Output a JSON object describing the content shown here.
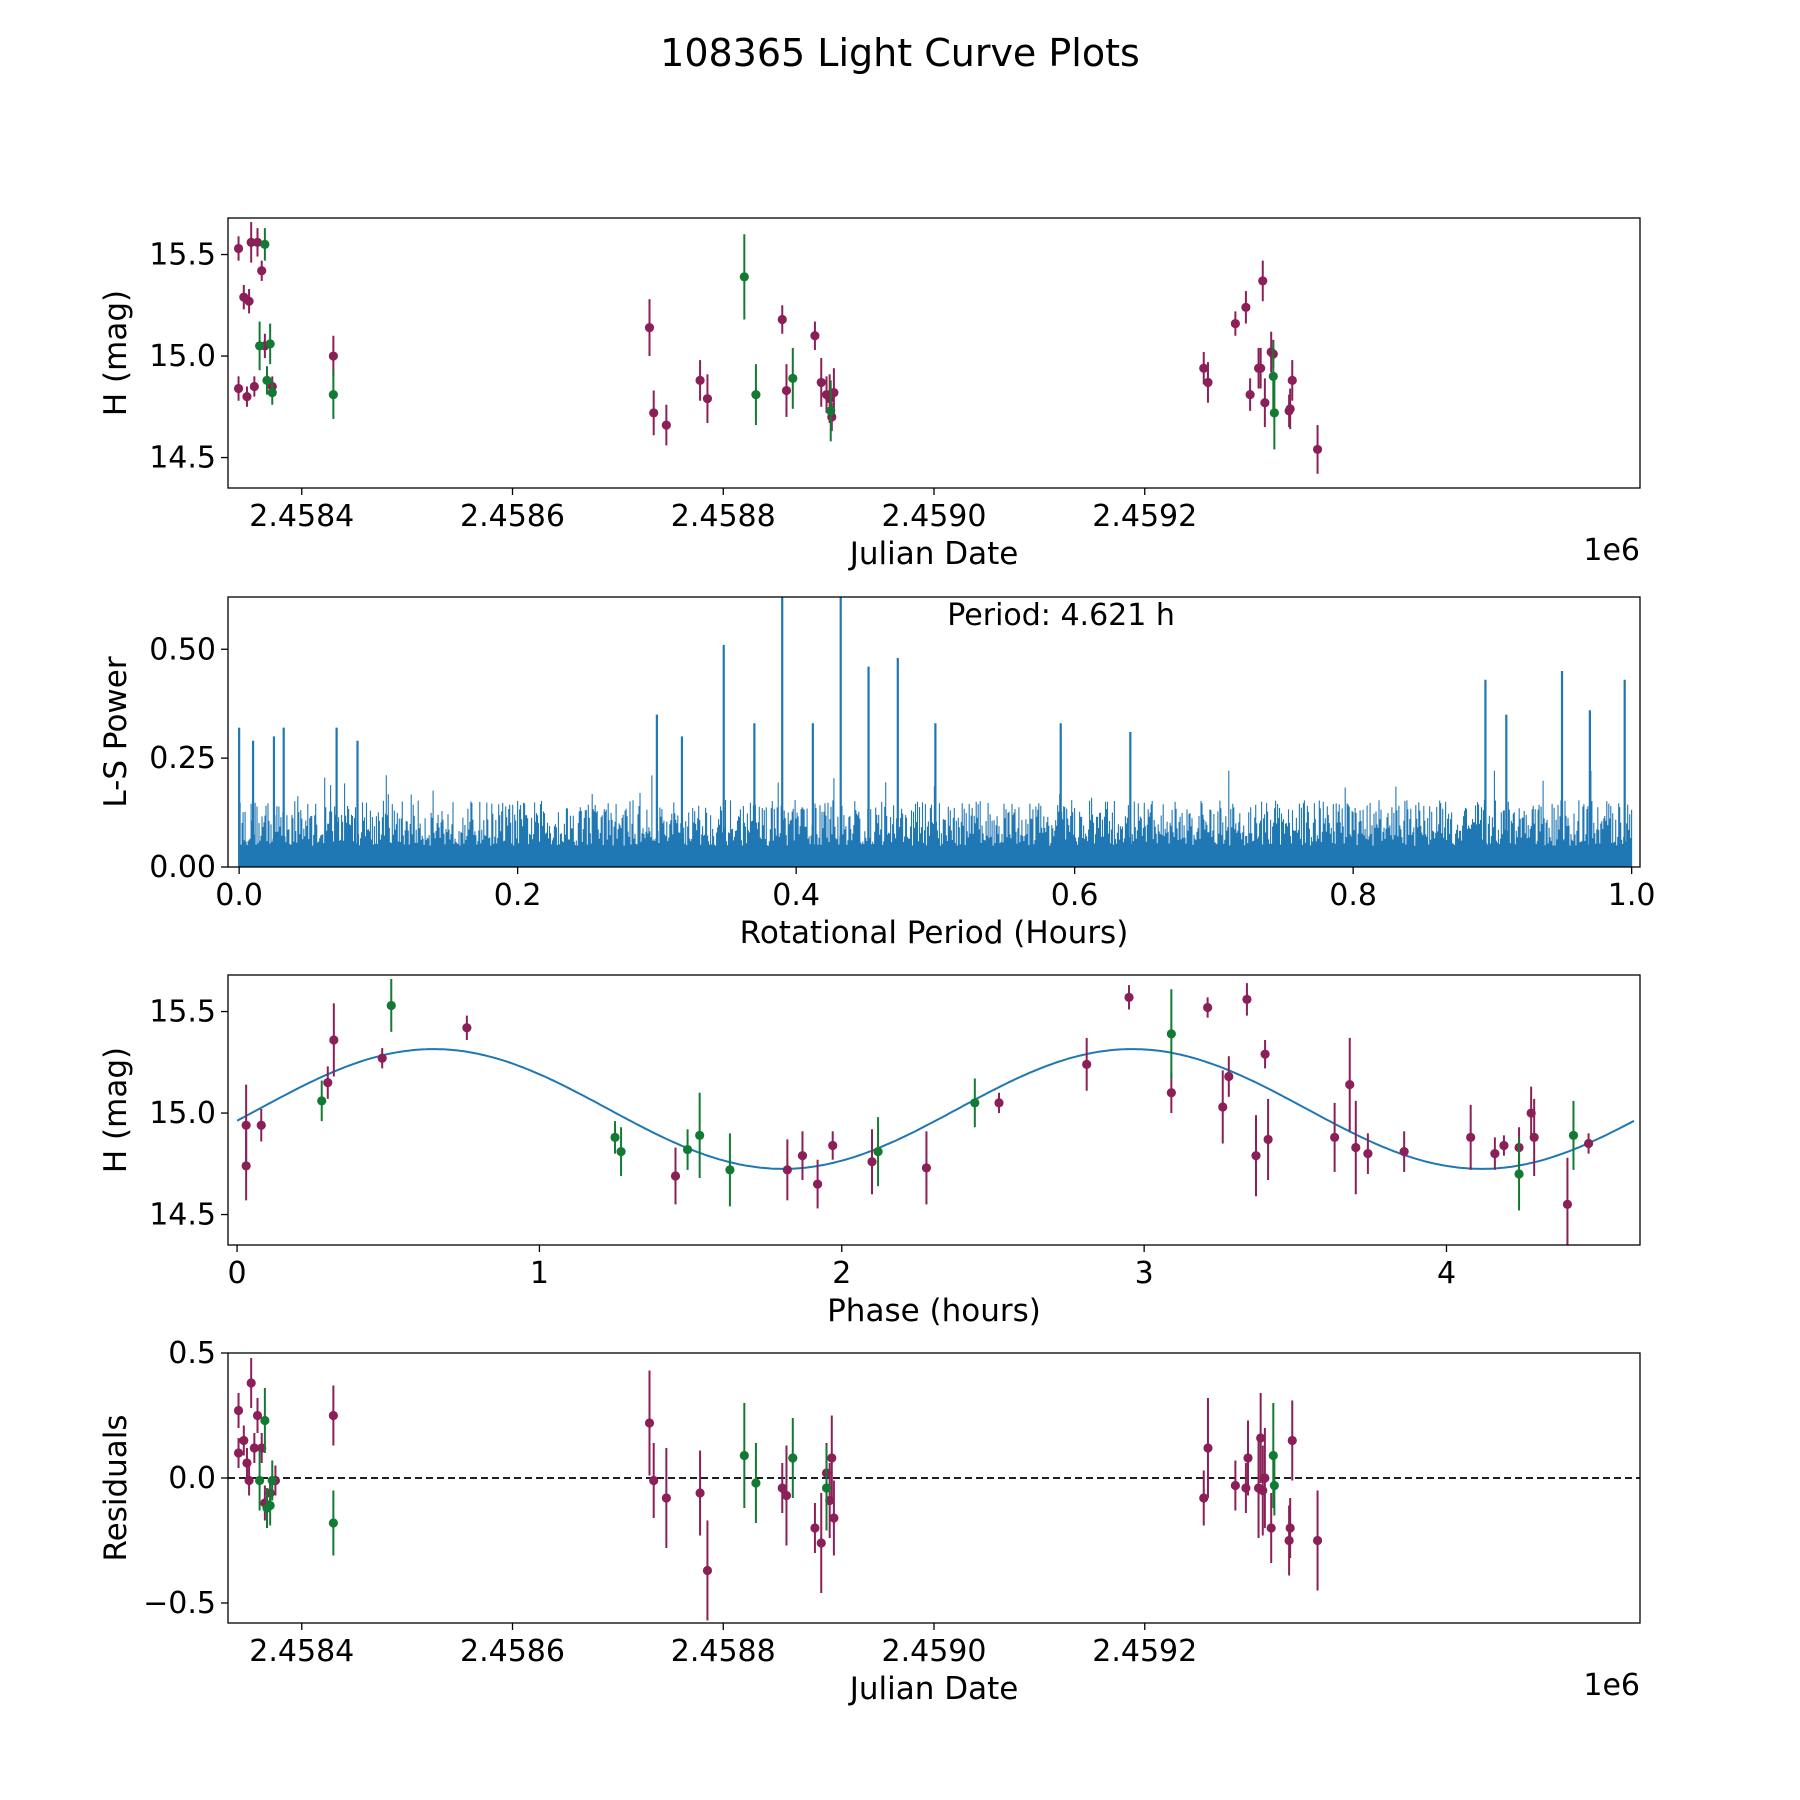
{
  "figure_title": "108365 Light Curve Plots",
  "colors": {
    "ztf_r": "#8b1f57",
    "ztf_g": "#137a33",
    "periodogram": "#1f77b4",
    "fit_curve": "#1f77b4",
    "zero_line": "#000000"
  },
  "chart_data": [
    {
      "type": "scatter",
      "title": "",
      "xlabel": "Julian Date",
      "ylabel": "H (mag)",
      "x_offset_label": "1e6",
      "xlim": [
        2.45833,
        2.45967
      ],
      "ylim": [
        14.35,
        15.68
      ],
      "xticks": [
        2.4584,
        2.4586,
        2.4588,
        2.459,
        2.4592
      ],
      "xtick_labels": [
        "2.4584",
        "2.4586",
        "2.4588",
        "2.4590",
        "2.4592"
      ],
      "yticks": [
        14.5,
        15.0,
        15.5
      ],
      "ytick_labels": [
        "14.5",
        "15.0",
        "15.5"
      ],
      "series": [
        {
          "name": "red",
          "color": "#8b1f57",
          "points": [
            [
              2.45834,
              15.53,
              0.06
            ],
            [
              2.45834,
              14.84,
              0.06
            ],
            [
              2.458345,
              15.29,
              0.06
            ],
            [
              2.458348,
              14.8,
              0.05
            ],
            [
              2.45835,
              15.27,
              0.06
            ],
            [
              2.458352,
              15.56,
              0.1
            ],
            [
              2.458355,
              14.85,
              0.05
            ],
            [
              2.458358,
              15.56,
              0.07
            ],
            [
              2.458362,
              15.42,
              0.05
            ],
            [
              2.458365,
              15.05,
              0.06
            ],
            [
              2.458372,
              14.85,
              0.05
            ],
            [
              2.45843,
              15.0,
              0.1
            ],
            [
              2.45873,
              15.14,
              0.14
            ],
            [
              2.458734,
              14.72,
              0.11
            ],
            [
              2.458746,
              14.66,
              0.1
            ],
            [
              2.458778,
              14.88,
              0.1
            ],
            [
              2.458785,
              14.79,
              0.12
            ],
            [
              2.458856,
              15.18,
              0.07
            ],
            [
              2.45886,
              14.83,
              0.13
            ],
            [
              2.458887,
              15.1,
              0.07
            ],
            [
              2.458893,
              14.87,
              0.12
            ],
            [
              2.458898,
              14.81,
              0.09
            ],
            [
              2.458901,
              14.79,
              0.12
            ],
            [
              2.458903,
              14.7,
              0.07
            ],
            [
              2.458905,
              14.82,
              0.12
            ],
            [
              2.459256,
              14.94,
              0.08
            ],
            [
              2.45926,
              14.87,
              0.1
            ],
            [
              2.459286,
              15.16,
              0.06
            ],
            [
              2.459296,
              15.24,
              0.08
            ],
            [
              2.4593,
              14.81,
              0.08
            ],
            [
              2.459308,
              14.94,
              0.1
            ],
            [
              2.45931,
              14.94,
              0.1
            ],
            [
              2.459312,
              15.37,
              0.1
            ],
            [
              2.459314,
              14.77,
              0.12
            ],
            [
              2.45932,
              15.02,
              0.1
            ],
            [
              2.459322,
              15.01,
              0.07
            ],
            [
              2.459337,
              14.73,
              0.08
            ],
            [
              2.459338,
              14.74,
              0.1
            ],
            [
              2.45934,
              14.88,
              0.1
            ],
            [
              2.459364,
              14.54,
              0.12
            ]
          ]
        },
        {
          "name": "green",
          "color": "#137a33",
          "points": [
            [
              2.458365,
              15.55,
              0.08
            ],
            [
              2.45836,
              15.05,
              0.12
            ],
            [
              2.458367,
              14.88,
              0.07
            ],
            [
              2.45837,
              15.06,
              0.1
            ],
            [
              2.458372,
              14.82,
              0.06
            ],
            [
              2.45843,
              14.81,
              0.12
            ],
            [
              2.45882,
              15.39,
              0.21
            ],
            [
              2.458831,
              14.81,
              0.15
            ],
            [
              2.458866,
              14.89,
              0.15
            ],
            [
              2.458902,
              14.73,
              0.15
            ],
            [
              2.459322,
              14.9,
              0.17
            ],
            [
              2.459323,
              14.72,
              0.18
            ]
          ]
        }
      ]
    },
    {
      "type": "line",
      "title": "",
      "xlabel": "Rotational Period (Hours)",
      "ylabel": "L-S Power",
      "xlim": [
        -0.008,
        1.006
      ],
      "ylim": [
        0.0,
        0.62
      ],
      "xticks": [
        0.0,
        0.2,
        0.4,
        0.6,
        0.8,
        1.0
      ],
      "xtick_labels": [
        "0.0",
        "0.2",
        "0.4",
        "0.6",
        "0.8",
        "1.0"
      ],
      "yticks": [
        0.0,
        0.25,
        0.5
      ],
      "ytick_labels": [
        "0.00",
        "0.25",
        "0.50"
      ],
      "annotation": "Period: 4.621 h",
      "noise_level": 0.14,
      "peaks": [
        [
          0.0,
          0.32
        ],
        [
          0.01,
          0.29
        ],
        [
          0.025,
          0.3
        ],
        [
          0.032,
          0.32
        ],
        [
          0.07,
          0.32
        ],
        [
          0.085,
          0.29
        ],
        [
          0.3,
          0.35
        ],
        [
          0.318,
          0.3
        ],
        [
          0.348,
          0.51
        ],
        [
          0.37,
          0.33
        ],
        [
          0.39,
          0.62
        ],
        [
          0.412,
          0.33
        ],
        [
          0.432,
          0.62
        ],
        [
          0.452,
          0.46
        ],
        [
          0.473,
          0.48
        ],
        [
          0.5,
          0.33
        ],
        [
          0.59,
          0.33
        ],
        [
          0.64,
          0.31
        ],
        [
          0.895,
          0.43
        ],
        [
          0.91,
          0.35
        ],
        [
          0.95,
          0.45
        ],
        [
          0.97,
          0.36
        ],
        [
          0.995,
          0.43
        ]
      ]
    },
    {
      "type": "scatter",
      "title": "",
      "xlabel": "Phase (hours)",
      "ylabel": "H (mag)",
      "xlim": [
        -0.03,
        4.64
      ],
      "ylim": [
        14.35,
        15.68
      ],
      "xticks": [
        0,
        1,
        2,
        3,
        4
      ],
      "xtick_labels": [
        "0",
        "1",
        "2",
        "3",
        "4"
      ],
      "yticks": [
        14.5,
        15.0,
        15.5
      ],
      "ytick_labels": [
        "14.5",
        "15.0",
        "15.5"
      ],
      "fit": {
        "mean": 15.02,
        "amplitude": 0.295,
        "period_h": 4.621,
        "peak_phase_h": 0.65,
        "x_range": [
          0.0,
          4.62
        ]
      },
      "series": [
        {
          "name": "red",
          "color": "#8b1f57",
          "points": [
            [
              0.03,
              14.94,
              0.2
            ],
            [
              0.03,
              14.74,
              0.17
            ],
            [
              0.08,
              14.94,
              0.08
            ],
            [
              0.3,
              15.15,
              0.08
            ],
            [
              0.32,
              15.36,
              0.18
            ],
            [
              0.48,
              15.27,
              0.05
            ],
            [
              0.76,
              15.42,
              0.06
            ],
            [
              1.45,
              14.69,
              0.14
            ],
            [
              1.82,
              14.72,
              0.15
            ],
            [
              1.87,
              14.79,
              0.12
            ],
            [
              1.92,
              14.65,
              0.12
            ],
            [
              1.97,
              14.84,
              0.07
            ],
            [
              2.1,
              14.76,
              0.16
            ],
            [
              2.28,
              14.73,
              0.18
            ],
            [
              2.52,
              15.05,
              0.05
            ],
            [
              2.81,
              15.24,
              0.13
            ],
            [
              2.95,
              15.57,
              0.06
            ],
            [
              3.09,
              15.1,
              0.1
            ],
            [
              3.21,
              15.52,
              0.05
            ],
            [
              3.26,
              15.03,
              0.18
            ],
            [
              3.28,
              15.18,
              0.1
            ],
            [
              3.34,
              15.56,
              0.08
            ],
            [
              3.37,
              14.79,
              0.2
            ],
            [
              3.4,
              15.29,
              0.07
            ],
            [
              3.41,
              14.87,
              0.2
            ],
            [
              3.63,
              14.88,
              0.17
            ],
            [
              3.68,
              15.14,
              0.23
            ],
            [
              3.7,
              14.83,
              0.23
            ],
            [
              3.74,
              14.8,
              0.1
            ],
            [
              3.86,
              14.81,
              0.1
            ],
            [
              4.08,
              14.88,
              0.16
            ],
            [
              4.16,
              14.8,
              0.08
            ],
            [
              4.19,
              14.84,
              0.05
            ],
            [
              4.24,
              14.83,
              0.1
            ],
            [
              4.28,
              15.0,
              0.13
            ],
            [
              4.29,
              14.88,
              0.19
            ],
            [
              4.4,
              14.55,
              0.23
            ],
            [
              4.47,
              14.85,
              0.05
            ]
          ]
        },
        {
          "name": "green",
          "color": "#137a33",
          "points": [
            [
              0.28,
              15.06,
              0.1
            ],
            [
              0.51,
              15.53,
              0.13
            ],
            [
              1.25,
              14.88,
              0.08
            ],
            [
              1.27,
              14.81,
              0.12
            ],
            [
              1.49,
              14.82,
              0.1
            ],
            [
              1.53,
              14.89,
              0.21
            ],
            [
              1.63,
              14.72,
              0.18
            ],
            [
              2.12,
              14.81,
              0.17
            ],
            [
              2.44,
              15.05,
              0.12
            ],
            [
              3.09,
              15.39,
              0.22
            ],
            [
              4.24,
              14.7,
              0.18
            ],
            [
              4.42,
              14.89,
              0.17
            ]
          ]
        }
      ]
    },
    {
      "type": "scatter",
      "title": "",
      "xlabel": "Julian Date",
      "ylabel": "Residuals",
      "x_offset_label": "1e6",
      "xlim": [
        2.45833,
        2.45967
      ],
      "ylim": [
        -0.58,
        0.5
      ],
      "xticks": [
        2.4584,
        2.4586,
        2.4588,
        2.459,
        2.4592
      ],
      "xtick_labels": [
        "2.4584",
        "2.4586",
        "2.4588",
        "2.4590",
        "2.4592"
      ],
      "yticks": [
        -0.5,
        0.0,
        0.5
      ],
      "ytick_labels": [
        "−0.5",
        "0.0",
        "0.5"
      ],
      "zero_line": 0.0,
      "series": [
        {
          "name": "red",
          "color": "#8b1f57",
          "points": [
            [
              2.45834,
              0.1,
              0.06
            ],
            [
              2.45834,
              0.27,
              0.07
            ],
            [
              2.458345,
              0.15,
              0.06
            ],
            [
              2.458348,
              0.06,
              0.06
            ],
            [
              2.45835,
              -0.01,
              0.06
            ],
            [
              2.458352,
              0.38,
              0.1
            ],
            [
              2.458355,
              0.12,
              0.06
            ],
            [
              2.458358,
              0.25,
              0.07
            ],
            [
              2.458362,
              0.12,
              0.06
            ],
            [
              2.458365,
              -0.1,
              0.07
            ],
            [
              2.45837,
              -0.06,
              0.06
            ],
            [
              2.458375,
              -0.01,
              0.06
            ],
            [
              2.45843,
              0.25,
              0.12
            ],
            [
              2.45873,
              0.22,
              0.21
            ],
            [
              2.458734,
              -0.01,
              0.15
            ],
            [
              2.458746,
              -0.08,
              0.2
            ],
            [
              2.458778,
              -0.06,
              0.17
            ],
            [
              2.458785,
              -0.37,
              0.2
            ],
            [
              2.458856,
              -0.04,
              0.1
            ],
            [
              2.45886,
              -0.07,
              0.2
            ],
            [
              2.458887,
              -0.2,
              0.1
            ],
            [
              2.458893,
              -0.26,
              0.2
            ],
            [
              2.458898,
              0.02,
              0.12
            ],
            [
              2.458901,
              -0.09,
              0.15
            ],
            [
              2.458903,
              0.08,
              0.17
            ],
            [
              2.458905,
              -0.16,
              0.15
            ],
            [
              2.459256,
              -0.08,
              0.11
            ],
            [
              2.45926,
              0.12,
              0.2
            ],
            [
              2.459286,
              -0.03,
              0.1
            ],
            [
              2.459296,
              -0.04,
              0.1
            ],
            [
              2.459298,
              0.08,
              0.15
            ],
            [
              2.459308,
              -0.04,
              0.2
            ],
            [
              2.45931,
              0.16,
              0.18
            ],
            [
              2.459312,
              -0.05,
              0.18
            ],
            [
              2.459314,
              0.0,
              0.2
            ],
            [
              2.45932,
              -0.2,
              0.14
            ],
            [
              2.459337,
              -0.25,
              0.14
            ],
            [
              2.459338,
              -0.2,
              0.12
            ],
            [
              2.45934,
              0.15,
              0.16
            ],
            [
              2.459364,
              -0.25,
              0.2
            ]
          ]
        },
        {
          "name": "green",
          "color": "#137a33",
          "points": [
            [
              2.458365,
              0.23,
              0.13
            ],
            [
              2.45836,
              -0.01,
              0.12
            ],
            [
              2.458367,
              -0.12,
              0.08
            ],
            [
              2.45837,
              -0.11,
              0.08
            ],
            [
              2.458372,
              -0.01,
              0.08
            ],
            [
              2.45843,
              -0.18,
              0.13
            ],
            [
              2.45882,
              0.09,
              0.21
            ],
            [
              2.458831,
              -0.02,
              0.16
            ],
            [
              2.458866,
              0.08,
              0.16
            ],
            [
              2.458898,
              -0.04,
              0.17
            ],
            [
              2.459322,
              0.09,
              0.21
            ],
            [
              2.459323,
              -0.03,
              0.12
            ]
          ]
        }
      ]
    }
  ]
}
